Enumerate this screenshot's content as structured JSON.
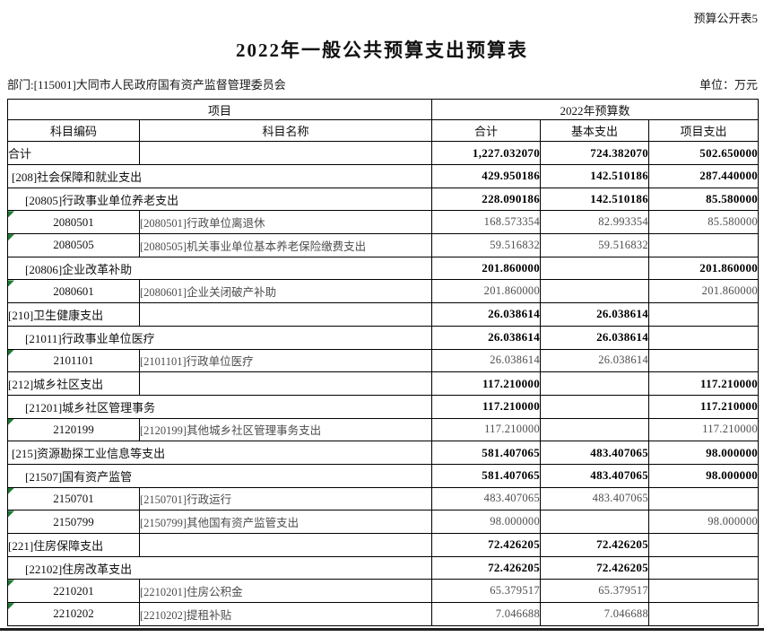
{
  "page": {
    "corner_label": "预算公开表5",
    "title": "2022年一般公共预算支出预算表",
    "department": "部门:[115001]大同市人民政府国有资产监督管理委员会",
    "unit": "单位：万元"
  },
  "table": {
    "header": {
      "group_project": "项目",
      "group_budget": "2022年预算数",
      "col_code": "科目编码",
      "col_name": "科目名称",
      "col_total": "合计",
      "col_basic": "基本支出",
      "col_project": "项目支出"
    },
    "colors": {
      "border": "#000000",
      "leaf_text": "#4d4d4d",
      "triangle_green": "#1e7b33"
    },
    "rows": [
      {
        "type": "total",
        "code": "合计",
        "name": "",
        "total": "1,227.032070",
        "basic": "724.382070",
        "project": "502.650000"
      },
      {
        "type": "sec1",
        "code": "",
        "name": "[208]社会保障和就业支出",
        "total": "429.950186",
        "basic": "142.510186",
        "project": "287.440000"
      },
      {
        "type": "sec2",
        "code": "",
        "name": "[20805]行政事业单位养老支出",
        "total": "228.090186",
        "basic": "142.510186",
        "project": "85.580000"
      },
      {
        "type": "leaf",
        "code": "2080501",
        "name": "[2080501]行政单位离退休",
        "total": "168.573354",
        "basic": "82.993354",
        "project": "85.580000"
      },
      {
        "type": "leaf",
        "code": "2080505",
        "name": "[2080505]机关事业单位基本养老保险缴费支出",
        "total": "59.516832",
        "basic": "59.516832",
        "project": ""
      },
      {
        "type": "sec2",
        "code": "",
        "name": "[20806]企业改革补助",
        "total": "201.860000",
        "basic": "",
        "project": "201.860000"
      },
      {
        "type": "leaf",
        "code": "2080601",
        "name": "[2080601]企业关闭破产补助",
        "total": "201.860000",
        "basic": "",
        "project": "201.860000"
      },
      {
        "type": "sec1d",
        "code": "",
        "name": "[210]卫生健康支出",
        "total": "26.038614",
        "basic": "26.038614",
        "project": ""
      },
      {
        "type": "sec2",
        "code": "",
        "name": "[21011]行政事业单位医疗",
        "total": "26.038614",
        "basic": "26.038614",
        "project": ""
      },
      {
        "type": "leaf",
        "code": "2101101",
        "name": "[2101101]行政单位医疗",
        "total": "26.038614",
        "basic": "26.038614",
        "project": ""
      },
      {
        "type": "sec1d",
        "code": "",
        "name": "[212]城乡社区支出",
        "total": "117.210000",
        "basic": "",
        "project": "117.210000"
      },
      {
        "type": "sec2",
        "code": "",
        "name": "[21201]城乡社区管理事务",
        "total": "117.210000",
        "basic": "",
        "project": "117.210000"
      },
      {
        "type": "leaf",
        "code": "2120199",
        "name": "[2120199]其他城乡社区管理事务支出",
        "total": "117.210000",
        "basic": "",
        "project": "117.210000"
      },
      {
        "type": "sec1",
        "code": "",
        "name": "[215]资源勘探工业信息等支出",
        "total": "581.407065",
        "basic": "483.407065",
        "project": "98.000000"
      },
      {
        "type": "sec2",
        "code": "",
        "name": "[21507]国有资产监管",
        "total": "581.407065",
        "basic": "483.407065",
        "project": "98.000000"
      },
      {
        "type": "leaf",
        "code": "2150701",
        "name": "[2150701]行政运行",
        "total": "483.407065",
        "basic": "483.407065",
        "project": ""
      },
      {
        "type": "leaf",
        "code": "2150799",
        "name": "[2150799]其他国有资产监管支出",
        "total": "98.000000",
        "basic": "",
        "project": "98.000000"
      },
      {
        "type": "sec1d",
        "code": "",
        "name": "[221]住房保障支出",
        "total": "72.426205",
        "basic": "72.426205",
        "project": ""
      },
      {
        "type": "sec2",
        "code": "",
        "name": "[22102]住房改革支出",
        "total": "72.426205",
        "basic": "72.426205",
        "project": ""
      },
      {
        "type": "leaf",
        "code": "2210201",
        "name": "[2210201]住房公积金",
        "total": "65.379517",
        "basic": "65.379517",
        "project": ""
      },
      {
        "type": "leaf",
        "code": "2210202",
        "name": "[2210202]提租补贴",
        "total": "7.046688",
        "basic": "7.046688",
        "project": ""
      }
    ]
  }
}
